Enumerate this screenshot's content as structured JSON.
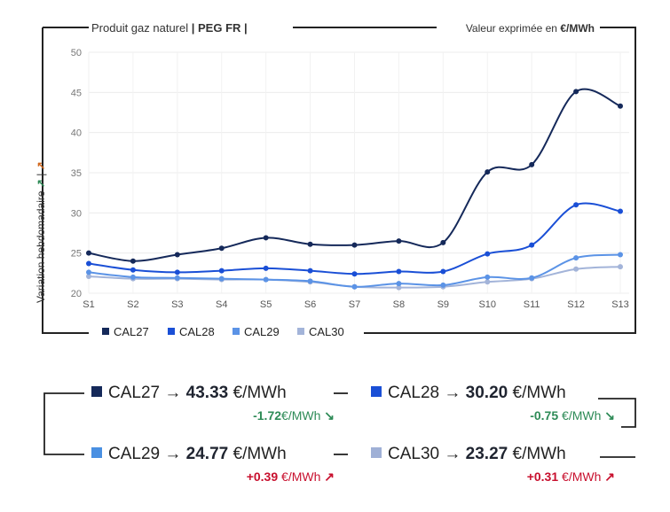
{
  "chart_data": {
    "type": "line",
    "title": "Produit gaz naturel",
    "title_bold": "| PEG FR |",
    "unit_label": "Valeur exprimée en",
    "unit_bold": "€/MWh",
    "ylabel": "Variation hebdomadaire",
    "ylabel_markers": [
      "↗",
      "|",
      "↗"
    ],
    "ylim": [
      20,
      50
    ],
    "yticks": [
      20,
      25,
      30,
      35,
      40,
      45,
      50
    ],
    "categories": [
      "S1",
      "S2",
      "S3",
      "S4",
      "S5",
      "S6",
      "S7",
      "S8",
      "S9",
      "S10",
      "S11",
      "S12",
      "S13"
    ],
    "series": [
      {
        "name": "CAL27",
        "color": "#15295a",
        "values": [
          25.0,
          24.0,
          24.8,
          25.6,
          26.9,
          26.1,
          26.0,
          26.5,
          26.3,
          35.1,
          36.0,
          45.1,
          43.3
        ]
      },
      {
        "name": "CAL28",
        "color": "#1a4fd6",
        "values": [
          23.7,
          22.9,
          22.6,
          22.8,
          23.1,
          22.8,
          22.4,
          22.7,
          22.7,
          24.9,
          26.0,
          31.0,
          30.2
        ]
      },
      {
        "name": "CAL29",
        "color": "#5b93e6",
        "values": [
          22.6,
          22.0,
          21.9,
          21.8,
          21.7,
          21.5,
          20.8,
          21.2,
          21.0,
          22.0,
          21.9,
          24.4,
          24.8
        ]
      },
      {
        "name": "CAL30",
        "color": "#a3b4d9",
        "values": [
          22.1,
          21.8,
          21.8,
          21.7,
          21.7,
          21.4,
          20.8,
          20.7,
          20.8,
          21.4,
          21.8,
          23.0,
          23.3
        ]
      }
    ]
  },
  "summary": [
    {
      "name": "CAL27",
      "arrow": "→",
      "price": "43.33",
      "unit": "€/MWh",
      "delta": "-1.72",
      "delta_unit": "€/MWh",
      "delta_arrow": "↘",
      "color": "#15295a"
    },
    {
      "name": "CAL28",
      "arrow": "→",
      "price": "30.20",
      "unit": "€/MWh",
      "delta": "-0.75",
      "delta_unit": "€/MWh",
      "delta_arrow": "↘",
      "color": "#1a4fd6"
    },
    {
      "name": "CAL29",
      "arrow": "→",
      "price": "24.77",
      "unit": "€/MWh",
      "delta": "+0.39",
      "delta_unit": "€/MWh",
      "delta_arrow": "↗",
      "color": "#4a90e2"
    },
    {
      "name": "CAL30",
      "arrow": "→",
      "price": "23.27",
      "unit": "€/MWh",
      "delta": "+0.31",
      "delta_unit": "€/MWh",
      "delta_arrow": "↗",
      "color": "#9fb0d6"
    }
  ]
}
